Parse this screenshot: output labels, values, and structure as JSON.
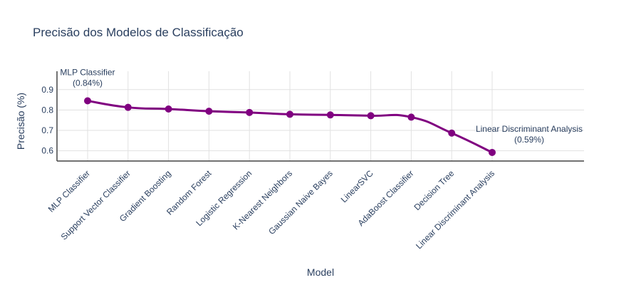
{
  "chart_data": {
    "type": "line",
    "title": "Precisão dos Modelos de Classificação",
    "xlabel": "Model",
    "ylabel": "Precisão (%)",
    "categories": [
      "MLP Classifier",
      "Support Vector Classifier",
      "Gradient Boosting",
      "Random Forest",
      "Logistic Regression",
      "K-Nearest Neighbors",
      "Gaussian Naive Bayes",
      "LinearSVC",
      "AdaBoost Classifier",
      "Decision Tree",
      "Linear Discriminant Analysis"
    ],
    "values": [
      0.845,
      0.813,
      0.805,
      0.794,
      0.788,
      0.779,
      0.776,
      0.772,
      0.765,
      0.687,
      0.592
    ],
    "ylim": [
      0.55,
      0.99
    ],
    "yticks": [
      0.6,
      0.7,
      0.8,
      0.9
    ],
    "ytick_labels": [
      "0.6",
      "0.7",
      "0.8",
      "0.9"
    ],
    "grid": true,
    "line_shape": "spline",
    "color": "#800080",
    "annotations": [
      {
        "index": 0,
        "lines": [
          "MLP Classifier",
          "(0.84%)"
        ]
      },
      {
        "index": 10,
        "lines": [
          "Linear Discriminant Analysis",
          "(0.59%)"
        ]
      }
    ]
  }
}
